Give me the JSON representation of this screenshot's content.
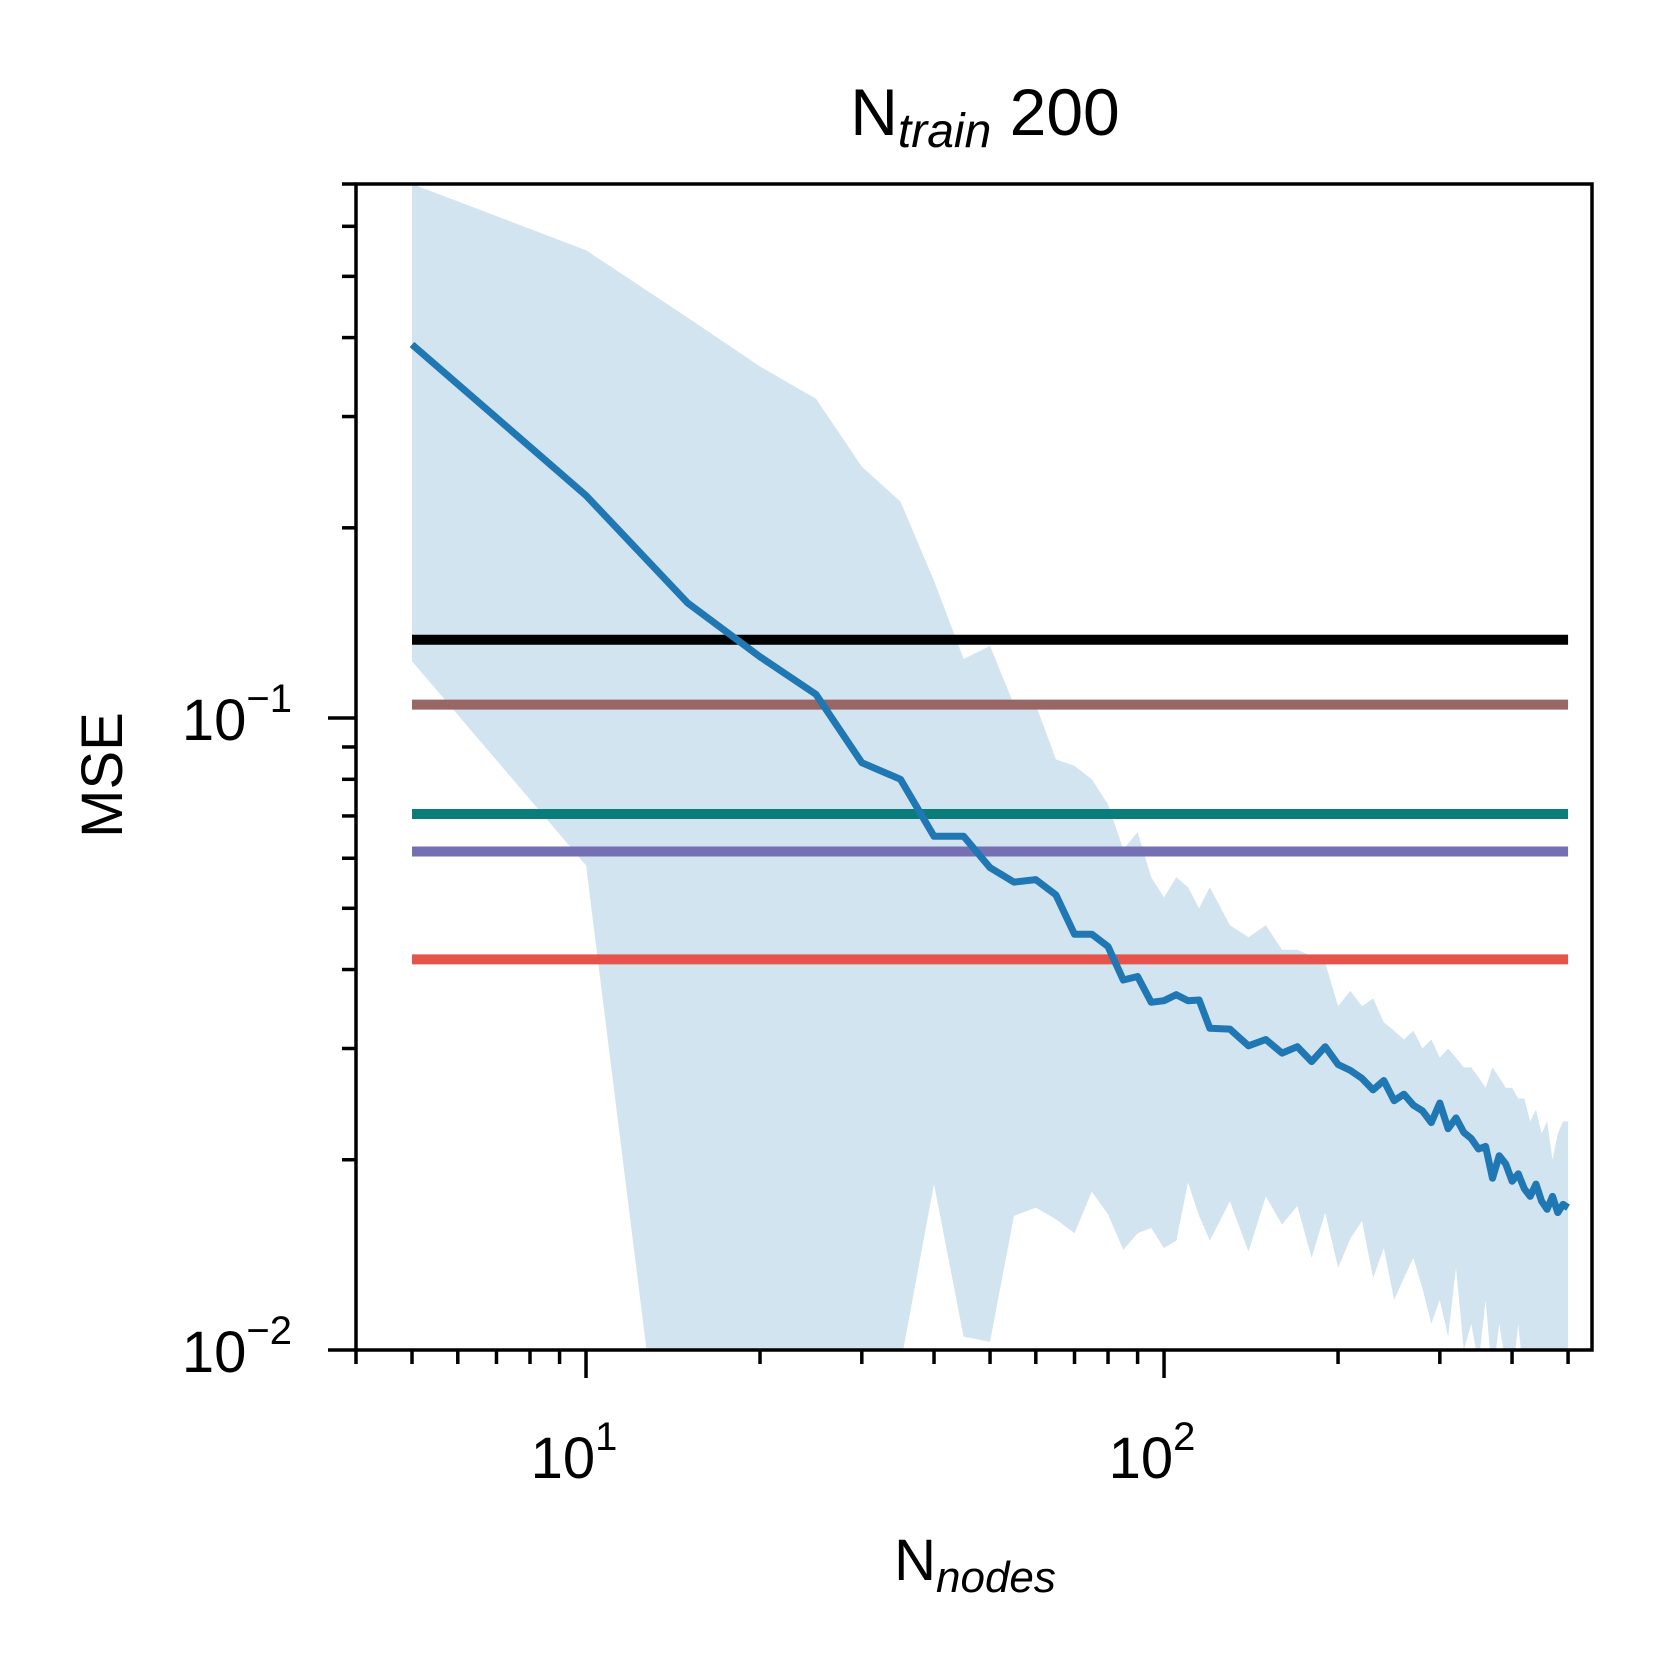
{
  "chart_data": {
    "type": "line",
    "title": {
      "base": "N",
      "sub": "train",
      "rest": " 200"
    },
    "xlabel": {
      "base": "N",
      "sub": "nodes"
    },
    "ylabel": "MSE",
    "xscale": "log",
    "yscale": "log",
    "xlim": [
      4.0,
      550
    ],
    "ylim": [
      0.01,
      0.7
    ],
    "x_ticks": [
      {
        "base": "10",
        "exp": "1",
        "value": 10
      },
      {
        "base": "10",
        "exp": "2",
        "value": 100
      }
    ],
    "y_ticks": [
      {
        "base": "10",
        "exp": "−1",
        "value": 0.1
      },
      {
        "base": "10",
        "exp": "−2",
        "value": 0.01
      }
    ],
    "grid": false,
    "legend": "none",
    "series": [
      {
        "color": "#1f77b4",
        "x": [
          5,
          10,
          15,
          20,
          25,
          30,
          35,
          40,
          45,
          50,
          55,
          60,
          65,
          70,
          75,
          80,
          85,
          90,
          95,
          100,
          105,
          110,
          115,
          120,
          130,
          140,
          150,
          160,
          170,
          180,
          190,
          200,
          210,
          220,
          230,
          240,
          250,
          260,
          270,
          280,
          290,
          300,
          310,
          320,
          330,
          340,
          350,
          360,
          370,
          380,
          390,
          400,
          410,
          420,
          430,
          440,
          450,
          460,
          470,
          480,
          490,
          500
        ],
        "y": [
          0.39,
          0.225,
          0.152,
          0.125,
          0.109,
          0.085,
          0.08,
          0.065,
          0.065,
          0.058,
          0.055,
          0.0555,
          0.0525,
          0.0455,
          0.0455,
          0.0435,
          0.0385,
          0.039,
          0.0355,
          0.0357,
          0.0365,
          0.0357,
          0.0358,
          0.0323,
          0.0322,
          0.0303,
          0.031,
          0.0295,
          0.0302,
          0.0286,
          0.0302,
          0.0283,
          0.0277,
          0.0269,
          0.0258,
          0.0267,
          0.0248,
          0.0254,
          0.0244,
          0.0239,
          0.0229,
          0.0246,
          0.0224,
          0.0233,
          0.0221,
          0.0216,
          0.0208,
          0.021,
          0.0187,
          0.0203,
          0.0197,
          0.0185,
          0.019,
          0.018,
          0.0175,
          0.0183,
          0.0172,
          0.0167,
          0.0175,
          0.0165,
          0.017,
          0.0168
        ],
        "band_upper": [
          0.7,
          0.55,
          0.43,
          0.36,
          0.32,
          0.25,
          0.22,
          0.165,
          0.124,
          0.13,
          0.105,
          0.105,
          0.086,
          0.084,
          0.08,
          0.073,
          0.062,
          0.066,
          0.056,
          0.052,
          0.056,
          0.054,
          0.05,
          0.054,
          0.047,
          0.045,
          0.047,
          0.043,
          0.043,
          0.042,
          0.041,
          0.035,
          0.037,
          0.035,
          0.036,
          0.033,
          0.032,
          0.031,
          0.032,
          0.03,
          0.031,
          0.029,
          0.03,
          0.029,
          0.028,
          0.028,
          0.027,
          0.026,
          0.028,
          0.027,
          0.026,
          0.026,
          0.025,
          0.025,
          0.023,
          0.024,
          0.022,
          0.023,
          0.02,
          0.022,
          0.023,
          0.023
        ],
        "band_lower": [
          0.123,
          0.0585,
          0.003,
          0.004,
          0.006,
          0.007,
          0.0095,
          0.0183,
          0.0105,
          0.0103,
          0.0163,
          0.0168,
          0.0161,
          0.0153,
          0.0178,
          0.0164,
          0.0144,
          0.0153,
          0.0156,
          0.0145,
          0.0149,
          0.0184,
          0.0163,
          0.0149,
          0.0172,
          0.0143,
          0.0175,
          0.0158,
          0.0169,
          0.014,
          0.0165,
          0.0135,
          0.015,
          0.016,
          0.013,
          0.0145,
          0.012,
          0.013,
          0.014,
          0.0125,
          0.011,
          0.012,
          0.0105,
          0.0135,
          0.01,
          0.011,
          0.0095,
          0.012,
          0.009,
          0.011,
          0.0095,
          0.009,
          0.011,
          0.0088,
          0.01,
          0.0092,
          0.0085,
          0.0095,
          0.0088,
          0.009,
          0.0092,
          0.009
        ]
      }
    ],
    "hlines": [
      {
        "y": 0.133,
        "color": "#000000"
      },
      {
        "y": 0.105,
        "color": "#996666"
      },
      {
        "y": 0.0705,
        "color": "#0a7c79"
      },
      {
        "y": 0.0615,
        "color": "#7570b3"
      },
      {
        "y": 0.0415,
        "color": "#e5534b"
      }
    ]
  }
}
